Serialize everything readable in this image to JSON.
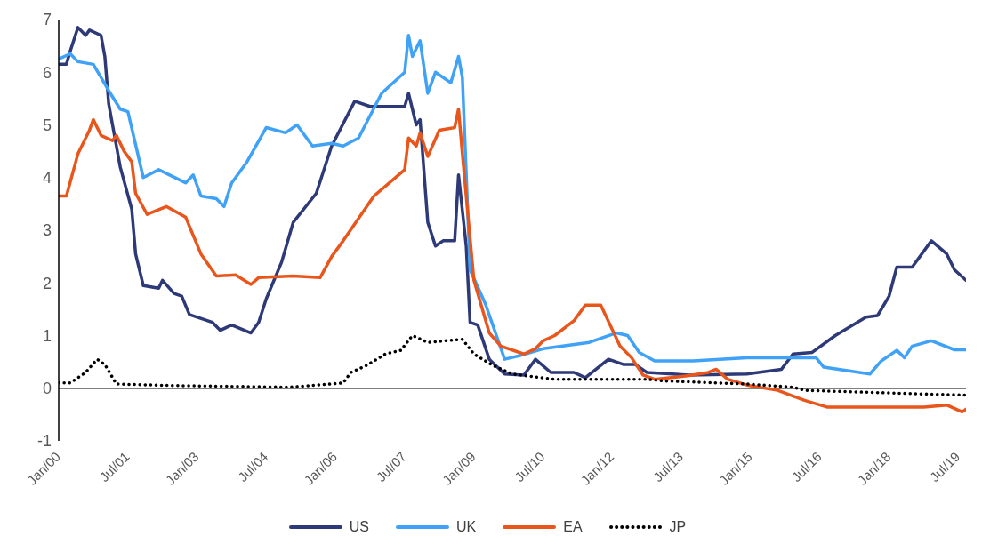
{
  "chart_data": {
    "type": "line",
    "marker": "none",
    "legend": "bottom",
    "grid": false,
    "xlim": [
      "2000-01",
      "2019-09"
    ],
    "xticks": [
      {
        "value": "2000-01",
        "label": "Jan/00"
      },
      {
        "value": "2001-07",
        "label": "Jul/01"
      },
      {
        "value": "2003-01",
        "label": "Jan/03"
      },
      {
        "value": "2004-07",
        "label": "Jul/04"
      },
      {
        "value": "2006-01",
        "label": "Jan/06"
      },
      {
        "value": "2007-07",
        "label": "Jul/07"
      },
      {
        "value": "2009-01",
        "label": "Jan/09"
      },
      {
        "value": "2010-07",
        "label": "Jul/10"
      },
      {
        "value": "2012-01",
        "label": "Jan/12"
      },
      {
        "value": "2013-07",
        "label": "Jul/13"
      },
      {
        "value": "2015-01",
        "label": "Jan/15"
      },
      {
        "value": "2016-07",
        "label": "Jul/16"
      },
      {
        "value": "2018-01",
        "label": "Jan/18"
      },
      {
        "value": "2019-07",
        "label": "Jul/19"
      }
    ],
    "ylim": [
      -1,
      7
    ],
    "yticks": [
      -1,
      0,
      1,
      2,
      3,
      4,
      5,
      6,
      7
    ],
    "ref_lines": [
      {
        "axis": "y",
        "value": 0,
        "color": "#000000"
      }
    ],
    "series": [
      {
        "name": "US",
        "color": "#2e3a78",
        "line_style": "solid",
        "x": [
          "2000-01",
          "2000-03",
          "2000-04",
          "2000-06",
          "2000-08",
          "2000-09",
          "2000-12",
          "2001-01",
          "2001-02",
          "2001-03",
          "2001-05",
          "2001-08",
          "2001-09",
          "2001-11",
          "2002-03",
          "2002-04",
          "2002-07",
          "2002-09",
          "2002-11",
          "2003-05",
          "2003-07",
          "2003-10",
          "2004-03",
          "2004-05",
          "2004-07",
          "2004-11",
          "2005-02",
          "2005-08",
          "2005-12",
          "2006-06",
          "2006-10",
          "2007-07",
          "2007-08",
          "2007-10",
          "2007-11",
          "2008-01",
          "2008-03",
          "2008-05",
          "2008-08",
          "2008-09",
          "2008-11",
          "2008-12",
          "2009-02",
          "2009-05",
          "2009-09",
          "2010-02",
          "2010-05",
          "2010-09",
          "2011-03",
          "2011-06",
          "2011-12",
          "2012-04",
          "2012-07",
          "2012-10",
          "2013-09",
          "2014-12",
          "2015-09",
          "2015-12",
          "2016-05",
          "2016-11",
          "2017-07",
          "2017-10",
          "2018-01",
          "2018-03",
          "2018-07",
          "2018-12",
          "2019-04",
          "2019-06",
          "2019-09"
        ],
        "values": [
          6.15,
          6.15,
          6.4,
          6.85,
          6.7,
          6.8,
          6.7,
          6.3,
          5.4,
          5.0,
          4.2,
          3.4,
          2.55,
          1.95,
          1.9,
          2.05,
          1.8,
          1.75,
          1.4,
          1.25,
          1.1,
          1.2,
          1.05,
          1.25,
          1.7,
          2.4,
          3.15,
          3.7,
          4.6,
          5.45,
          5.35,
          5.35,
          5.6,
          5.0,
          5.1,
          3.15,
          2.7,
          2.8,
          2.8,
          4.05,
          2.7,
          1.25,
          1.2,
          0.55,
          0.27,
          0.25,
          0.55,
          0.3,
          0.3,
          0.2,
          0.55,
          0.45,
          0.45,
          0.3,
          0.25,
          0.27,
          0.36,
          0.65,
          0.68,
          1.0,
          1.35,
          1.38,
          1.75,
          2.3,
          2.3,
          2.8,
          2.55,
          2.25,
          2.05
        ]
      },
      {
        "name": "UK",
        "color": "#3fa2f7",
        "line_style": "solid",
        "x": [
          "2000-01",
          "2000-04",
          "2000-06",
          "2000-10",
          "2001-02",
          "2001-05",
          "2001-07",
          "2001-11",
          "2002-03",
          "2002-10",
          "2002-12",
          "2003-02",
          "2003-06",
          "2003-08",
          "2003-10",
          "2004-02",
          "2004-07",
          "2004-12",
          "2005-03",
          "2005-07",
          "2005-12",
          "2006-03",
          "2006-07",
          "2007-01",
          "2007-07",
          "2007-08",
          "2007-09",
          "2007-11",
          "2008-01",
          "2008-03",
          "2008-07",
          "2008-09",
          "2008-10",
          "2008-12",
          "2009-04",
          "2009-09",
          "2010-01",
          "2010-07",
          "2011-07",
          "2012-02",
          "2012-05",
          "2012-08",
          "2012-12",
          "2013-10",
          "2014-12",
          "2016-06",
          "2016-08",
          "2017-08",
          "2017-11",
          "2018-03",
          "2018-05",
          "2018-07",
          "2018-12",
          "2019-06",
          "2019-09"
        ],
        "values": [
          6.25,
          6.35,
          6.2,
          6.15,
          5.65,
          5.3,
          5.25,
          4.0,
          4.15,
          3.9,
          4.05,
          3.65,
          3.6,
          3.45,
          3.9,
          4.3,
          4.95,
          4.85,
          5.0,
          4.6,
          4.65,
          4.6,
          4.75,
          5.6,
          6.0,
          6.7,
          6.3,
          6.6,
          5.6,
          6.0,
          5.8,
          6.3,
          5.9,
          2.25,
          1.6,
          0.55,
          0.62,
          0.75,
          0.87,
          1.05,
          1.0,
          0.68,
          0.52,
          0.52,
          0.58,
          0.58,
          0.4,
          0.27,
          0.52,
          0.72,
          0.58,
          0.8,
          0.9,
          0.73,
          0.73
        ]
      },
      {
        "name": "EA",
        "color": "#e8561c",
        "line_style": "solid",
        "x": [
          "2000-01",
          "2000-03",
          "2000-06",
          "2000-09",
          "2000-10",
          "2000-12",
          "2001-03",
          "2001-04",
          "2001-06",
          "2001-08",
          "2001-09",
          "2001-12",
          "2002-05",
          "2002-10",
          "2003-02",
          "2003-06",
          "2003-11",
          "2004-03",
          "2004-05",
          "2005-02",
          "2005-09",
          "2005-12",
          "2006-03",
          "2006-11",
          "2007-07",
          "2007-08",
          "2007-10",
          "2007-11",
          "2008-01",
          "2008-04",
          "2008-08",
          "2008-09",
          "2008-10",
          "2009-01",
          "2009-05",
          "2009-08",
          "2010-02",
          "2010-05",
          "2010-07",
          "2010-10",
          "2011-03",
          "2011-06",
          "2011-10",
          "2012-03",
          "2012-06",
          "2012-09",
          "2012-12",
          "2013-09",
          "2014-02",
          "2014-04",
          "2014-07",
          "2014-12",
          "2015-08",
          "2016-03",
          "2016-09",
          "2018-10",
          "2019-04",
          "2019-08",
          "2019-09"
        ],
        "values": [
          3.65,
          3.65,
          4.45,
          4.9,
          5.1,
          4.8,
          4.7,
          4.8,
          4.5,
          4.3,
          3.7,
          3.3,
          3.45,
          3.25,
          2.55,
          2.13,
          2.15,
          1.97,
          2.1,
          2.13,
          2.1,
          2.5,
          2.8,
          3.65,
          4.15,
          4.75,
          4.6,
          4.85,
          4.4,
          4.9,
          4.95,
          5.3,
          4.45,
          2.05,
          1.05,
          0.8,
          0.65,
          0.75,
          0.9,
          1.0,
          1.28,
          1.58,
          1.58,
          0.8,
          0.58,
          0.25,
          0.17,
          0.24,
          0.3,
          0.36,
          0.17,
          0.06,
          -0.04,
          -0.23,
          -0.36,
          -0.36,
          -0.32,
          -0.45,
          -0.4
        ]
      },
      {
        "name": "JP",
        "color": "#000000",
        "line_style": "dotted",
        "x": [
          "2000-01",
          "2000-04",
          "2000-08",
          "2000-11",
          "2001-01",
          "2001-04",
          "2002-07",
          "2005-01",
          "2006-03",
          "2006-05",
          "2006-09",
          "2007-02",
          "2007-06",
          "2007-09",
          "2008-01",
          "2008-10",
          "2009-01",
          "2009-06",
          "2009-11",
          "2010-10",
          "2012-10",
          "2013-02",
          "2014-12",
          "2015-12",
          "2016-03",
          "2018-10",
          "2019-09"
        ],
        "values": [
          0.1,
          0.1,
          0.3,
          0.55,
          0.45,
          0.08,
          0.05,
          0.02,
          0.1,
          0.3,
          0.43,
          0.65,
          0.72,
          1.0,
          0.87,
          0.93,
          0.65,
          0.43,
          0.27,
          0.17,
          0.17,
          0.14,
          0.08,
          0.02,
          -0.04,
          -0.11,
          -0.13
        ]
      }
    ]
  }
}
